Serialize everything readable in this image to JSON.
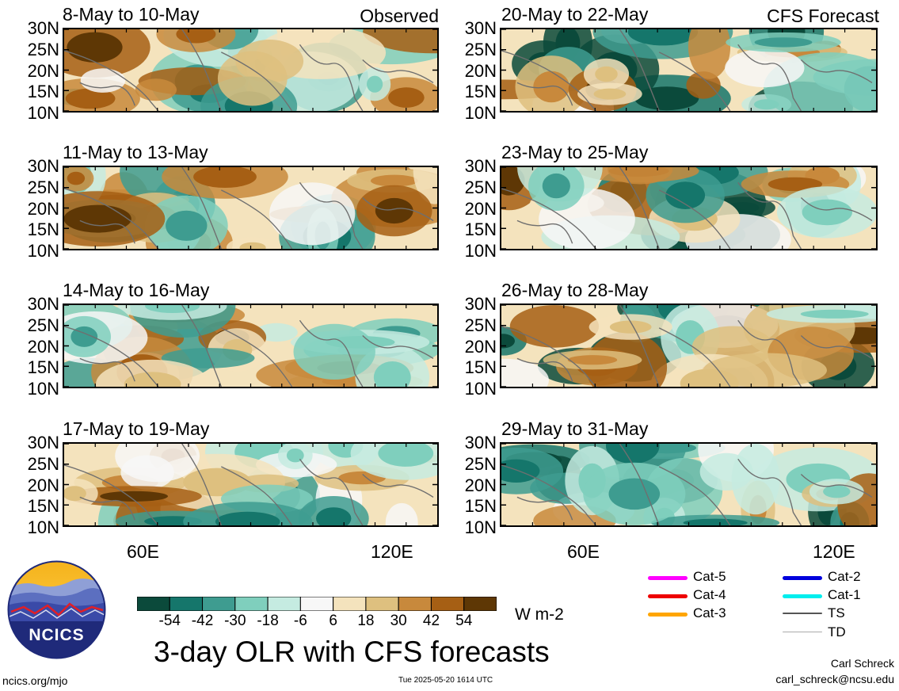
{
  "panels": [
    {
      "title": "8-May to 10-May",
      "tag": "Observed"
    },
    {
      "title": "20-May to 22-May",
      "tag": "CFS Forecast"
    },
    {
      "title": "11-May to 13-May",
      "tag": ""
    },
    {
      "title": "23-May to 25-May",
      "tag": ""
    },
    {
      "title": "14-May to 16-May",
      "tag": ""
    },
    {
      "title": "26-May to 28-May",
      "tag": ""
    },
    {
      "title": "17-May to 19-May",
      "tag": ""
    },
    {
      "title": "29-May to 31-May",
      "tag": ""
    }
  ],
  "lat_labels": [
    "30N",
    "25N",
    "20N",
    "15N",
    "10N"
  ],
  "lon_labels": [
    "60E",
    "120E"
  ],
  "colorbar": {
    "colors": [
      "#0b4a3b",
      "#15766b",
      "#3e9c90",
      "#7fcfbd",
      "#c5ebe1",
      "#f7f7f7",
      "#f4e3bd",
      "#dec07f",
      "#c8893c",
      "#a65f14",
      "#5e3705"
    ],
    "labels": [
      "-54",
      "-42",
      "-30",
      "-18",
      "-6",
      "6",
      "18",
      "30",
      "42",
      "54"
    ],
    "unit": "W m-2"
  },
  "legend": [
    {
      "label": "Cat-5",
      "color": "#ff00ff"
    },
    {
      "label": "Cat-4",
      "color": "#ee0000"
    },
    {
      "label": "Cat-3",
      "color": "#ffa500"
    },
    {
      "label": "Cat-2",
      "color": "#0000dd"
    },
    {
      "label": "Cat-1",
      "color": "#00eeee"
    },
    {
      "label": "TS",
      "color": "#555555"
    },
    {
      "label": "TD",
      "color": "#aaaaaa"
    }
  ],
  "logo_text": "NCICS",
  "main_title": "3-day OLR with CFS forecasts",
  "footer_left": "ncics.org/mjo",
  "timestamp": "Tue 2025-05-20 1614 UTC",
  "author": "Carl Schreck",
  "email": "carl_schreck@ncsu.edu"
}
